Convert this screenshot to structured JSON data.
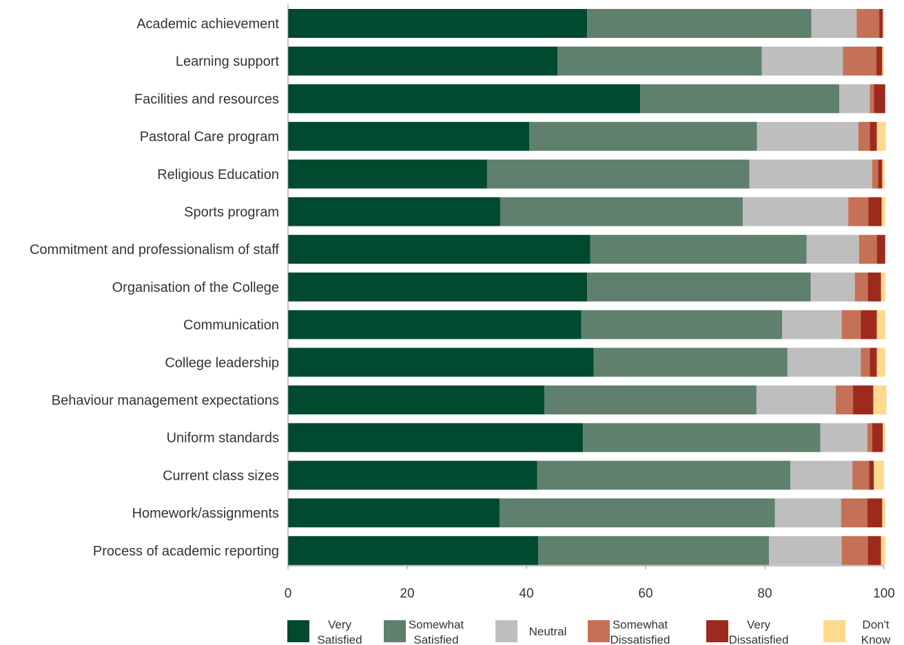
{
  "chart_data": {
    "type": "bar",
    "orientation": "horizontal",
    "stacked": true,
    "title": "",
    "xlabel": "",
    "ylabel": "",
    "xlim": [
      0,
      100
    ],
    "xticks": [
      0,
      20,
      40,
      60,
      80,
      100
    ],
    "grid": false,
    "legend_position": "bottom",
    "categories": [
      "Academic achievement",
      "Learning support",
      "Facilities and resources",
      "Pastoral Care program",
      "Religious Education",
      "Sports program",
      "Commitment and professionalism of staff",
      "Organisation of the College",
      "Communication",
      "College leadership",
      "Behaviour management expectations",
      "Uniform standards",
      "Current class sizes",
      "Homework/assignments",
      "Process of academic reporting"
    ],
    "series": [
      {
        "name": "Very Satisfied",
        "legend_lines": [
          "Very",
          "Satisfied"
        ],
        "color": "#004A2F",
        "values": [
          50.2,
          45.2,
          59.1,
          40.5,
          33.4,
          35.6,
          50.7,
          50.2,
          49.2,
          51.3,
          43.0,
          49.5,
          41.8,
          35.5,
          42.0
        ]
      },
      {
        "name": "Somewhat Satisfied",
        "legend_lines": [
          "Somewhat",
          "Satisfied"
        ],
        "color": "#5E806C",
        "values": [
          37.6,
          34.3,
          33.4,
          38.2,
          44.0,
          40.7,
          36.3,
          37.5,
          33.7,
          32.5,
          35.6,
          39.8,
          42.5,
          46.2,
          38.7
        ]
      },
      {
        "name": "Neutral",
        "legend_lines": [
          "Neutral"
        ],
        "color": "#BEBEBE",
        "values": [
          7.6,
          13.6,
          5.1,
          17.0,
          20.6,
          17.7,
          8.8,
          7.4,
          10.0,
          12.3,
          13.3,
          7.9,
          10.4,
          11.1,
          12.2
        ]
      },
      {
        "name": "Somewhat Dissatisfied",
        "legend_lines": [
          "Somewhat",
          "Dissatisfied"
        ],
        "color": "#C47156",
        "values": [
          3.8,
          5.6,
          0.7,
          1.9,
          1.0,
          3.4,
          3.0,
          2.2,
          3.2,
          1.5,
          2.9,
          0.8,
          2.8,
          4.4,
          4.4
        ]
      },
      {
        "name": "Very Dissatisfied",
        "legend_lines": [
          "Very",
          "Dissatisfied"
        ],
        "color": "#9E2A1E",
        "values": [
          0.6,
          1.0,
          1.9,
          1.2,
          0.7,
          2.2,
          1.4,
          2.2,
          2.7,
          1.2,
          3.4,
          1.8,
          0.8,
          2.5,
          2.2
        ]
      },
      {
        "name": "Don't Know",
        "legend_lines": [
          "Don't",
          "Know"
        ],
        "color": "#FFD98C",
        "values": [
          0.2,
          0.3,
          0.0,
          1.5,
          0.4,
          0.6,
          0.0,
          0.7,
          1.4,
          1.4,
          2.2,
          0.4,
          1.7,
          0.5,
          0.7
        ]
      }
    ]
  }
}
